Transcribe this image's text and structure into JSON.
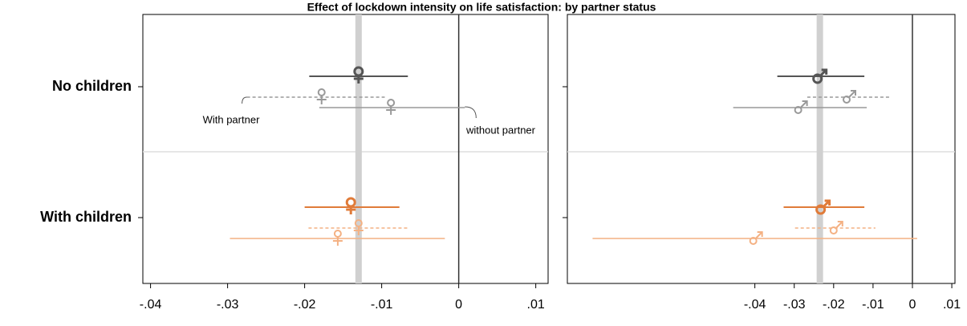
{
  "chart_data": [
    {
      "type": "errorbar",
      "title": "Effect of lockdown intensity on life satisfaction: by partner status",
      "marker": "female",
      "categories": [
        "No children",
        "With children"
      ],
      "xlim": [
        -0.041,
        0.0116
      ],
      "xticks": [
        {
          "value": -0.04,
          "label": "-.04"
        },
        {
          "value": -0.03,
          "label": "-.03"
        },
        {
          "value": -0.02,
          "label": "-.02"
        },
        {
          "value": -0.01,
          "label": "-.01"
        },
        0,
        {
          "value": 0.01,
          "label": ".01"
        }
      ],
      "reference": -0.013,
      "zero_line": 0,
      "annotations": [
        "With partner",
        "without partner"
      ],
      "series": [
        {
          "colors": [
            "#555555",
            "#e07b39"
          ],
          "dash": false,
          "values": [
            -0.013,
            -0.014
          ],
          "lower": [
            -0.0194,
            -0.02
          ],
          "upper": [
            -0.0066,
            -0.0077
          ]
        },
        {
          "colors": [
            "#999999",
            "#f4b183"
          ],
          "dash": true,
          "values": [
            -0.0178,
            -0.013
          ],
          "lower": [
            -0.0275,
            -0.0195
          ],
          "upper": [
            -0.0096,
            -0.0066
          ]
        },
        {
          "colors": [
            "#999999",
            "#f4b183"
          ],
          "dash": false,
          "values": [
            -0.0088,
            -0.0157
          ],
          "lower": [
            -0.0181,
            -0.0297
          ],
          "upper": [
            0.0008,
            -0.0018
          ]
        }
      ]
    },
    {
      "type": "errorbar",
      "marker": "male",
      "categories": [
        "No children",
        "With children"
      ],
      "xlim": [
        -0.0876,
        0.0108
      ],
      "xticks": [
        {
          "value": -0.04,
          "label": "-.04"
        },
        {
          "value": -0.03,
          "label": "-.03"
        },
        {
          "value": -0.02,
          "label": "-.02"
        },
        {
          "value": -0.01,
          "label": "-.01"
        },
        0,
        {
          "value": 0.01,
          "label": ".01"
        }
      ],
      "reference": -0.0235,
      "zero_line": 0,
      "series": [
        {
          "colors": [
            "#555555",
            "#e07b39"
          ],
          "dash": false,
          "values": [
            -0.0239,
            -0.0231
          ],
          "lower": [
            -0.0343,
            -0.0327
          ],
          "upper": [
            -0.0122,
            -0.0122
          ]
        },
        {
          "colors": [
            "#999999",
            "#f4b183"
          ],
          "dash": true,
          "values": [
            -0.0165,
            -0.0198
          ],
          "lower": [
            -0.0267,
            -0.0298
          ],
          "upper": [
            -0.0057,
            -0.0094
          ]
        },
        {
          "colors": [
            "#999999",
            "#f4b183"
          ],
          "dash": false,
          "values": [
            -0.0288,
            -0.0402
          ],
          "lower": [
            -0.0455,
            -0.0812
          ],
          "upper": [
            -0.0116,
            0.0012
          ]
        }
      ]
    }
  ]
}
